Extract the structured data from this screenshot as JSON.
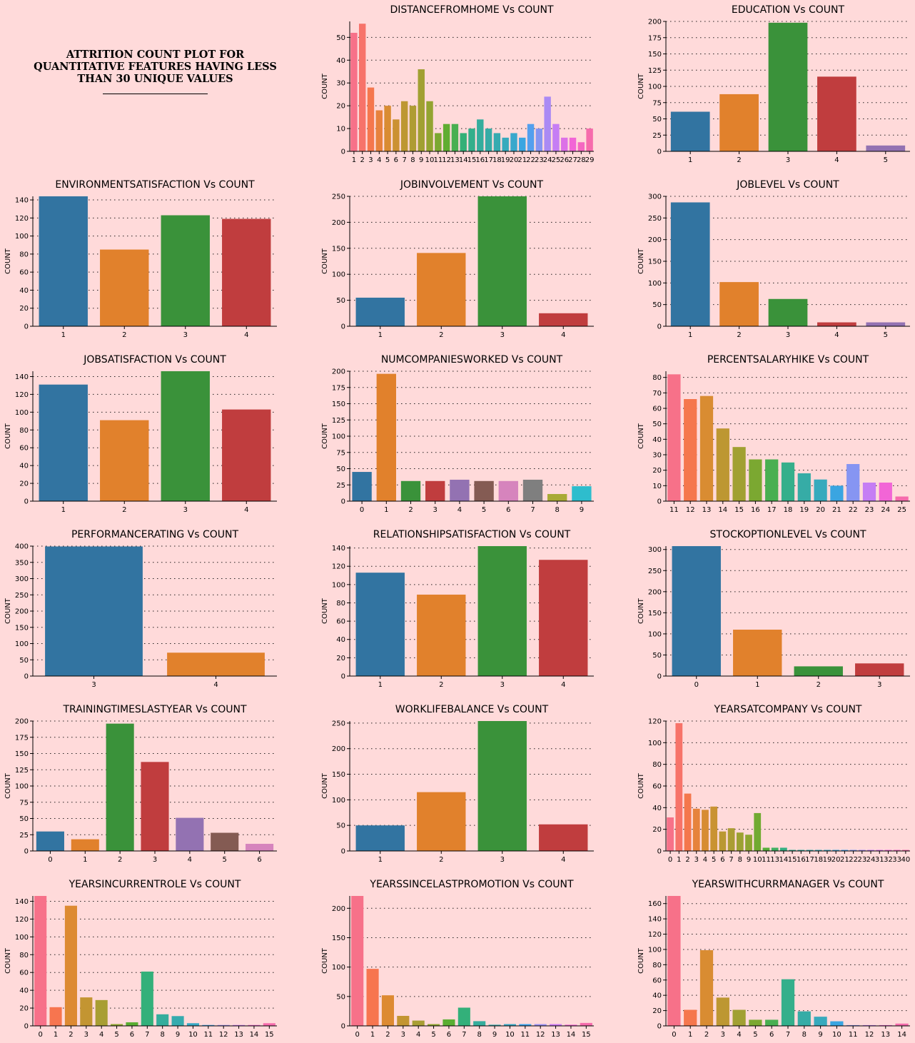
{
  "header": {
    "title": "ATTRITION COUNT PLOT FOR\nQUANTITATIVE FEATURES HAVING LESS\nTHAN 30 UNIQUE VALUES"
  },
  "colors": {
    "background": "#FFDADA",
    "deep": [
      "#3274A1",
      "#E1812C",
      "#3A923A",
      "#C03D3E",
      "#9372B2",
      "#845B53",
      "#D684BD",
      "#7F7F7F",
      "#A9AA35",
      "#2EBDCD"
    ],
    "husl_base": [
      "#F77189",
      "#F7754F",
      "#DD8A32",
      "#C39532",
      "#A89E33",
      "#8EA531",
      "#5AAE32",
      "#33B07A",
      "#35AD9C",
      "#36ABAE",
      "#38A9C5",
      "#3BA3EC",
      "#9A91F4",
      "#CC7AF4",
      "#F563D4",
      "#F66BAC"
    ]
  },
  "chart_data": [
    {
      "id": "distancefromhome",
      "type": "bar",
      "title": "DISTANCEFROMHOME Vs COUNT",
      "ylabel": "COUNT",
      "palette": "husl",
      "categories": [
        "1",
        "2",
        "3",
        "4",
        "5",
        "6",
        "7",
        "8",
        "9",
        "10",
        "11",
        "12",
        "13",
        "14",
        "15",
        "16",
        "17",
        "18",
        "19",
        "20",
        "21",
        "22",
        "23",
        "24",
        "25",
        "26",
        "27",
        "28",
        "29"
      ],
      "values": [
        52,
        56,
        28,
        18,
        20,
        14,
        22,
        20,
        36,
        22,
        8,
        12,
        12,
        8,
        10,
        14,
        10,
        8,
        6,
        8,
        6,
        12,
        10,
        24,
        12,
        6,
        6,
        4,
        10
      ],
      "yticks": [
        0,
        10,
        20,
        30,
        40,
        50
      ],
      "ylim": [
        0,
        57
      ],
      "grid": true
    },
    {
      "id": "education",
      "type": "bar",
      "title": "EDUCATION Vs COUNT",
      "ylabel": "COUNT",
      "palette": "deep",
      "categories": [
        "1",
        "2",
        "3",
        "4",
        "5"
      ],
      "values": [
        61,
        88,
        198,
        115,
        9
      ],
      "yticks": [
        0,
        25,
        50,
        75,
        100,
        125,
        150,
        175,
        200
      ],
      "ylim": [
        0,
        200
      ],
      "grid": true
    },
    {
      "id": "environmentsatisfaction",
      "type": "bar",
      "title": "ENVIRONMENTSATISFACTION Vs COUNT",
      "ylabel": "COUNT",
      "palette": "deep",
      "categories": [
        "1",
        "2",
        "3",
        "4"
      ],
      "values": [
        144,
        85,
        123,
        119
      ],
      "yticks": [
        0,
        20,
        40,
        60,
        80,
        100,
        120,
        140
      ],
      "ylim": [
        0,
        144
      ],
      "grid": true
    },
    {
      "id": "jobinvolvement",
      "type": "bar",
      "title": "JOBINVOLVEMENT Vs COUNT",
      "ylabel": "COUNT",
      "palette": "deep",
      "categories": [
        "1",
        "2",
        "3",
        "4"
      ],
      "values": [
        55,
        141,
        250,
        25
      ],
      "yticks": [
        0,
        50,
        100,
        150,
        200,
        250
      ],
      "ylim": [
        0,
        250
      ],
      "grid": true
    },
    {
      "id": "joblevel",
      "type": "bar",
      "title": "JOBLEVEL Vs COUNT",
      "ylabel": "COUNT",
      "palette": "deep",
      "categories": [
        "1",
        "2",
        "3",
        "4",
        "5"
      ],
      "values": [
        286,
        102,
        63,
        9,
        9
      ],
      "yticks": [
        0,
        50,
        100,
        150,
        200,
        250,
        300
      ],
      "ylim": [
        0,
        300
      ],
      "grid": true
    },
    {
      "id": "jobsatisfaction",
      "type": "bar",
      "title": "JOBSATISFACTION Vs COUNT",
      "ylabel": "COUNT",
      "palette": "deep",
      "categories": [
        "1",
        "2",
        "3",
        "4"
      ],
      "values": [
        131,
        91,
        146,
        103
      ],
      "yticks": [
        0,
        20,
        40,
        60,
        80,
        100,
        120,
        140
      ],
      "ylim": [
        0,
        146
      ],
      "grid": true
    },
    {
      "id": "numcompaniesworked",
      "type": "bar",
      "title": "NUMCOMPANIESWORKED Vs COUNT",
      "ylabel": "COUNT",
      "palette": "deep",
      "categories": [
        "0",
        "1",
        "2",
        "3",
        "4",
        "5",
        "6",
        "7",
        "8",
        "9"
      ],
      "values": [
        45,
        196,
        31,
        31,
        33,
        31,
        31,
        33,
        11,
        23
      ],
      "yticks": [
        0,
        25,
        50,
        75,
        100,
        125,
        150,
        175,
        200
      ],
      "ylim": [
        0,
        200
      ],
      "grid": true
    },
    {
      "id": "percentsalaryhike",
      "type": "bar",
      "title": "PERCENTSALARYHIKE Vs COUNT",
      "ylabel": "COUNT",
      "palette": "husl",
      "categories": [
        "11",
        "12",
        "13",
        "14",
        "15",
        "16",
        "17",
        "18",
        "19",
        "20",
        "21",
        "22",
        "23",
        "24",
        "25"
      ],
      "values": [
        82,
        66,
        68,
        47,
        35,
        27,
        27,
        25,
        18,
        14,
        10,
        24,
        12,
        12,
        3
      ],
      "yticks": [
        0,
        10,
        20,
        30,
        40,
        50,
        60,
        70,
        80
      ],
      "ylim": [
        0,
        84
      ],
      "grid": true
    },
    {
      "id": "performancerating",
      "type": "bar",
      "title": "PERFORMANCERATING Vs COUNT",
      "ylabel": "COUNT",
      "palette": "deep",
      "categories": [
        "3",
        "4"
      ],
      "values": [
        399,
        72
      ],
      "yticks": [
        0,
        50,
        100,
        150,
        200,
        250,
        300,
        350,
        400
      ],
      "ylim": [
        0,
        400
      ],
      "grid": true
    },
    {
      "id": "relationshipsatisfaction",
      "type": "bar",
      "title": "RELATIONSHIPSATISFACTION Vs COUNT",
      "ylabel": "COUNT",
      "palette": "deep",
      "categories": [
        "1",
        "2",
        "3",
        "4"
      ],
      "values": [
        113,
        89,
        142,
        127
      ],
      "yticks": [
        0,
        20,
        40,
        60,
        80,
        100,
        120,
        140
      ],
      "ylim": [
        0,
        142
      ],
      "grid": true
    },
    {
      "id": "stockoptionlevel",
      "type": "bar",
      "title": "STOCKOPTIONLEVEL Vs COUNT",
      "ylabel": "COUNT",
      "palette": "deep",
      "categories": [
        "0",
        "1",
        "2",
        "3"
      ],
      "values": [
        308,
        110,
        23,
        30
      ],
      "yticks": [
        0,
        50,
        100,
        150,
        200,
        250,
        300
      ],
      "ylim": [
        0,
        308
      ],
      "grid": true
    },
    {
      "id": "trainingtimeslastyear",
      "type": "bar",
      "title": "TRAININGTIMESLASTYEAR Vs COUNT",
      "ylabel": "COUNT",
      "palette": "deep",
      "categories": [
        "0",
        "1",
        "2",
        "3",
        "4",
        "5",
        "6"
      ],
      "values": [
        30,
        18,
        196,
        137,
        51,
        28,
        11
      ],
      "yticks": [
        0,
        25,
        50,
        75,
        100,
        125,
        150,
        175,
        200
      ],
      "ylim": [
        0,
        200
      ],
      "grid": true
    },
    {
      "id": "worklifebalance",
      "type": "bar",
      "title": "WORKLIFEBALANCE Vs COUNT",
      "ylabel": "COUNT",
      "palette": "deep",
      "categories": [
        "1",
        "2",
        "3",
        "4"
      ],
      "values": [
        50,
        115,
        254,
        52
      ],
      "yticks": [
        0,
        50,
        100,
        150,
        200,
        250
      ],
      "ylim": [
        0,
        254
      ],
      "grid": true
    },
    {
      "id": "yearsatcompany",
      "type": "bar",
      "title": "YEARSATCOMPANY Vs COUNT",
      "ylabel": "COUNT",
      "palette": "husl",
      "categories": [
        "0",
        "1",
        "2",
        "3",
        "4",
        "5",
        "6",
        "7",
        "8",
        "9",
        "10",
        "11",
        "13",
        "14",
        "15",
        "16",
        "17",
        "18",
        "19",
        "20",
        "21",
        "22",
        "23",
        "24",
        "31",
        "32",
        "33",
        "40"
      ],
      "values": [
        31,
        118,
        53,
        39,
        38,
        41,
        18,
        21,
        17,
        15,
        35,
        3,
        3,
        3,
        1,
        1,
        1,
        1,
        1,
        1,
        1,
        1,
        1,
        1,
        1,
        1,
        1,
        1
      ],
      "yticks": [
        0,
        20,
        40,
        60,
        80,
        100,
        120
      ],
      "ylim": [
        0,
        120
      ],
      "grid": true
    },
    {
      "id": "yearsincurrentrole",
      "type": "bar",
      "title": "YEARSINCURRENTROLE Vs COUNT",
      "ylabel": "COUNT",
      "palette": "husl",
      "categories": [
        "0",
        "1",
        "2",
        "3",
        "4",
        "5",
        "6",
        "7",
        "8",
        "9",
        "10",
        "11",
        "12",
        "13",
        "14",
        "15"
      ],
      "values": [
        146,
        21,
        135,
        32,
        29,
        2,
        4,
        61,
        13,
        11,
        3,
        1,
        1,
        1,
        1,
        3
      ],
      "yticks": [
        0,
        20,
        40,
        60,
        80,
        100,
        120,
        140
      ],
      "ylim": [
        0,
        146
      ],
      "grid": true
    },
    {
      "id": "yearssincelastpromotion",
      "type": "bar",
      "title": "YEARSSINCELASTPROMOTION Vs COUNT",
      "ylabel": "COUNT",
      "palette": "husl",
      "categories": [
        "0",
        "1",
        "2",
        "3",
        "4",
        "5",
        "6",
        "7",
        "8",
        "9",
        "10",
        "11",
        "12",
        "13",
        "14",
        "15"
      ],
      "values": [
        221,
        97,
        52,
        17,
        9,
        3,
        11,
        31,
        8,
        2,
        3,
        3,
        3,
        3,
        2,
        5
      ],
      "yticks": [
        0,
        50,
        100,
        150,
        200
      ],
      "ylim": [
        0,
        221
      ],
      "grid": true
    },
    {
      "id": "yearswithcurrmanager",
      "type": "bar",
      "title": "YEARSWITHCURRMANAGER Vs COUNT",
      "ylabel": "COUNT",
      "palette": "husl",
      "categories": [
        "0",
        "1",
        "2",
        "3",
        "4",
        "5",
        "6",
        "7",
        "8",
        "9",
        "10",
        "11",
        "12",
        "13",
        "14"
      ],
      "values": [
        170,
        21,
        99,
        37,
        21,
        8,
        8,
        61,
        19,
        12,
        6,
        1,
        1,
        1,
        3
      ],
      "yticks": [
        0,
        20,
        40,
        60,
        80,
        100,
        120,
        140,
        160
      ],
      "ylim": [
        0,
        170
      ],
      "grid": true
    }
  ]
}
